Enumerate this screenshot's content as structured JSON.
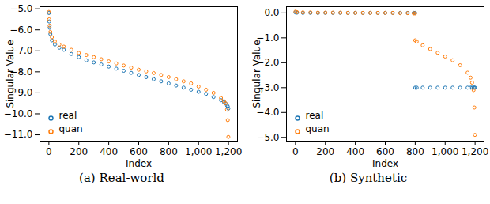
{
  "chart_data": [
    {
      "type": "scatter",
      "title": "(a) Real-world",
      "x_label": "Index",
      "y_label": "Singular Value",
      "xlim": [
        -60,
        1260
      ],
      "xticks": [
        0,
        200,
        400,
        600,
        800,
        1000,
        1200
      ],
      "ylim": [
        -11.3,
        -4.9
      ],
      "yticks": [
        -11,
        -10,
        -9,
        -8,
        -7,
        -6,
        -5
      ],
      "legend": "lower left",
      "marker": "circle",
      "x": [
        0,
        2,
        5,
        10,
        20,
        40,
        70,
        100,
        150,
        200,
        250,
        300,
        350,
        400,
        450,
        500,
        550,
        600,
        650,
        700,
        750,
        800,
        850,
        900,
        950,
        1000,
        1050,
        1100,
        1150,
        1170,
        1180,
        1190,
        1195,
        1199
      ],
      "series": [
        {
          "name": "real",
          "color": "#1f77b4",
          "values": [
            -5.2,
            -5.6,
            -5.9,
            -6.2,
            -6.5,
            -6.7,
            -6.85,
            -6.95,
            -7.15,
            -7.3,
            -7.45,
            -7.55,
            -7.65,
            -7.75,
            -7.85,
            -7.95,
            -8.05,
            -8.15,
            -8.25,
            -8.35,
            -8.45,
            -8.55,
            -8.65,
            -8.75,
            -8.85,
            -8.95,
            -9.05,
            -9.2,
            -9.35,
            -9.45,
            -9.5,
            -9.6,
            -9.65,
            -9.75
          ]
        },
        {
          "name": "quan",
          "color": "#ff7f0e",
          "values": [
            -5.15,
            -5.5,
            -5.8,
            -6.1,
            -6.35,
            -6.55,
            -6.7,
            -6.8,
            -6.95,
            -7.1,
            -7.2,
            -7.3,
            -7.4,
            -7.5,
            -7.6,
            -7.7,
            -7.8,
            -7.9,
            -7.98,
            -8.06,
            -8.15,
            -8.25,
            -8.35,
            -8.45,
            -8.55,
            -8.7,
            -8.85,
            -9.0,
            -9.25,
            -9.4,
            -9.5,
            -9.8,
            -10.3,
            -11.1
          ]
        }
      ]
    },
    {
      "type": "scatter",
      "title": "(b) Synthetic",
      "x_label": "Index",
      "y_label": "Singular Value",
      "xlim": [
        -60,
        1260
      ],
      "xticks": [
        0,
        200,
        400,
        600,
        800,
        1000,
        1200
      ],
      "ylim": [
        -5.15,
        0.25
      ],
      "yticks": [
        -5,
        -4,
        -3,
        -2,
        -1,
        0
      ],
      "legend": "lower left",
      "marker": "circle",
      "x": [
        0,
        10,
        50,
        100,
        150,
        200,
        250,
        300,
        350,
        400,
        450,
        500,
        550,
        600,
        650,
        700,
        750,
        790,
        799,
        800,
        810,
        850,
        900,
        950,
        1000,
        1050,
        1100,
        1150,
        1170,
        1180,
        1190,
        1195,
        1199
      ],
      "series": [
        {
          "name": "real",
          "color": "#1f77b4",
          "values": [
            0.02,
            0.01,
            0,
            0,
            0,
            0,
            0,
            0,
            0,
            0,
            0,
            0,
            0,
            0,
            0,
            0,
            0,
            0,
            0,
            -3.0,
            -3.0,
            -3.0,
            -3.0,
            -3.0,
            -3.0,
            -3.0,
            -3.0,
            -3.0,
            -3.0,
            -3.0,
            -3.0,
            -3.0,
            -3.0
          ]
        },
        {
          "name": "quan",
          "color": "#ff7f0e",
          "values": [
            0.05,
            0.03,
            0.02,
            0.02,
            0.01,
            0.01,
            0.01,
            0.01,
            0,
            0,
            0,
            0,
            0,
            0,
            0,
            -0.01,
            -0.01,
            -0.02,
            -0.02,
            -1.1,
            -1.15,
            -1.3,
            -1.45,
            -1.6,
            -1.75,
            -1.9,
            -2.1,
            -2.4,
            -2.6,
            -2.8,
            -3.1,
            -3.8,
            -4.9
          ]
        }
      ]
    }
  ]
}
